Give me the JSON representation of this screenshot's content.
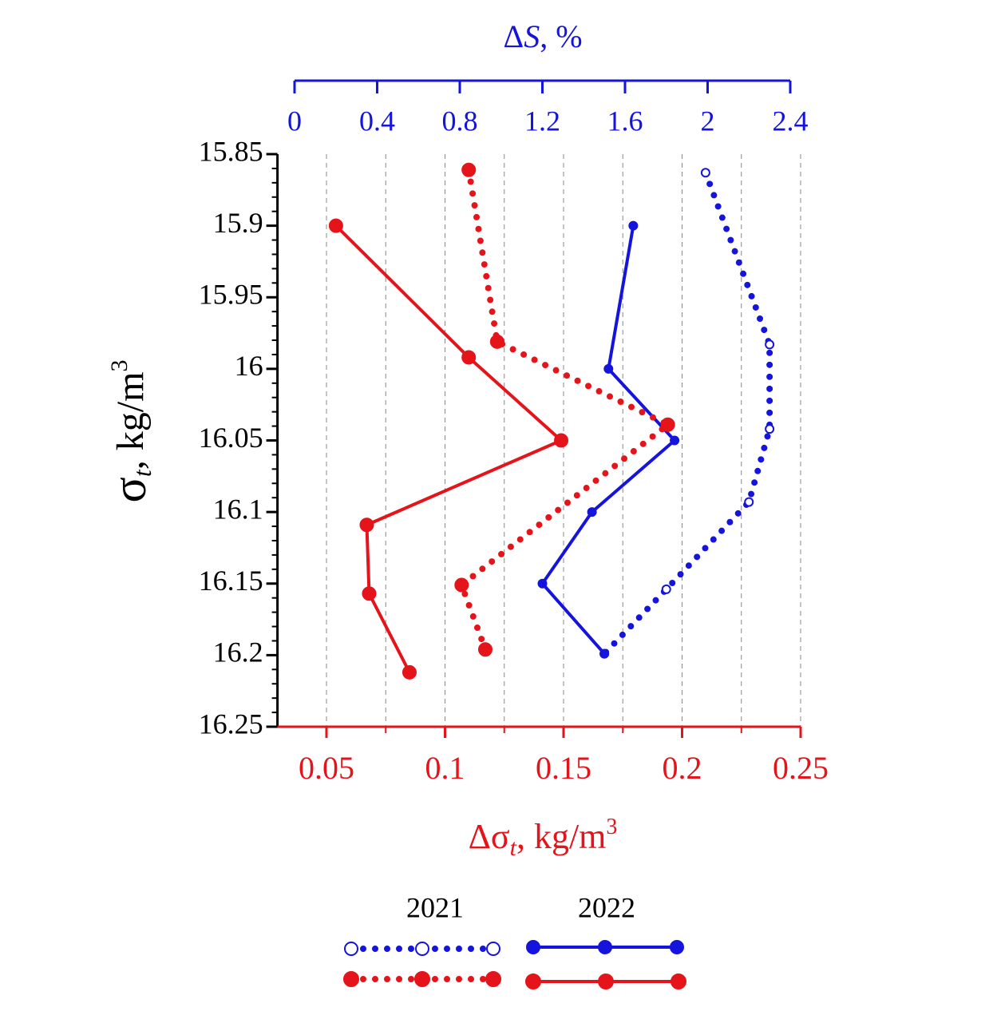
{
  "chart_data": {
    "type": "profile",
    "ylim": [
      15.85,
      16.25
    ],
    "yticks": [
      15.85,
      15.9,
      15.95,
      16,
      16.05,
      16.1,
      16.15,
      16.2,
      16.25
    ],
    "xlim": [
      0.03,
      0.25
    ],
    "xticks": [
      0.05,
      0.1,
      0.15,
      0.2,
      0.25
    ],
    "xminorticks": [
      0.075,
      0.125,
      0.175,
      0.225
    ],
    "x2lim": [
      0,
      2.4
    ],
    "x2ticks": [
      0,
      0.4,
      0.8,
      1.2,
      1.6,
      2,
      2.4
    ],
    "grid": true,
    "xlabel": {
      "symbol": "Δσ",
      "sub": "t",
      "unit": ",  kg/m",
      "sup": "3",
      "color": "#e5141b"
    },
    "x2label": {
      "delta": "Δ",
      "symbol": "S",
      "unit": ", %",
      "color": "#1414dc"
    },
    "ylabel": {
      "symbol": "σ",
      "sub": "t",
      "unit": ", kg/m",
      "sup": "3"
    },
    "series": [
      {
        "name": "2021",
        "color": "#1414dc",
        "style": "dotted",
        "marker": "open",
        "axis": "x2",
        "x": [
          1.99,
          2.3,
          2.3,
          2.2,
          1.8,
          1.5
        ],
        "y": [
          15.863,
          15.983,
          16.042,
          16.093,
          16.154,
          16.199
        ]
      },
      {
        "name": "2022",
        "color": "#1414dc",
        "style": "solid",
        "marker": "filled",
        "axis": "x2",
        "x": [
          1.64,
          1.52,
          1.84,
          1.44,
          1.2,
          1.5
        ],
        "y": [
          15.9,
          16.0,
          16.05,
          16.1,
          16.15,
          16.199
        ]
      },
      {
        "name": "2021",
        "color": "#e5141b",
        "style": "dotted",
        "marker": "filled",
        "axis": "x",
        "x": [
          0.11,
          0.122,
          0.194,
          0.107,
          0.117
        ],
        "y": [
          15.861,
          15.981,
          16.039,
          16.151,
          16.196
        ]
      },
      {
        "name": "2022",
        "color": "#e5141b",
        "style": "solid",
        "marker": "filled",
        "axis": "x",
        "x": [
          0.054,
          0.11,
          0.149,
          0.067,
          0.068,
          0.085
        ],
        "y": [
          15.9,
          15.992,
          16.05,
          16.109,
          16.157,
          16.212
        ]
      }
    ]
  }
}
